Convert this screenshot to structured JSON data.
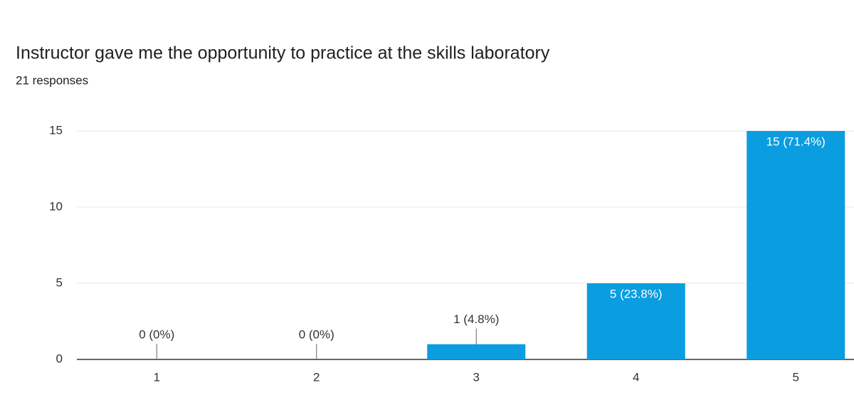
{
  "chart_data": {
    "type": "bar",
    "title": "Instructor gave me the opportunity to practice at the skills laboratory",
    "subtitle": "21 responses",
    "categories": [
      "1",
      "2",
      "3",
      "4",
      "5"
    ],
    "values": [
      0,
      0,
      1,
      5,
      15
    ],
    "value_labels": [
      "0 (0%)",
      "0 (0%)",
      "1 (4.8%)",
      "5 (23.8%)",
      "15 (71.4%)"
    ],
    "color": "#0a9de0",
    "ylim": [
      0,
      15
    ],
    "yticks": [
      0,
      5,
      10,
      15
    ],
    "grid": true
  }
}
